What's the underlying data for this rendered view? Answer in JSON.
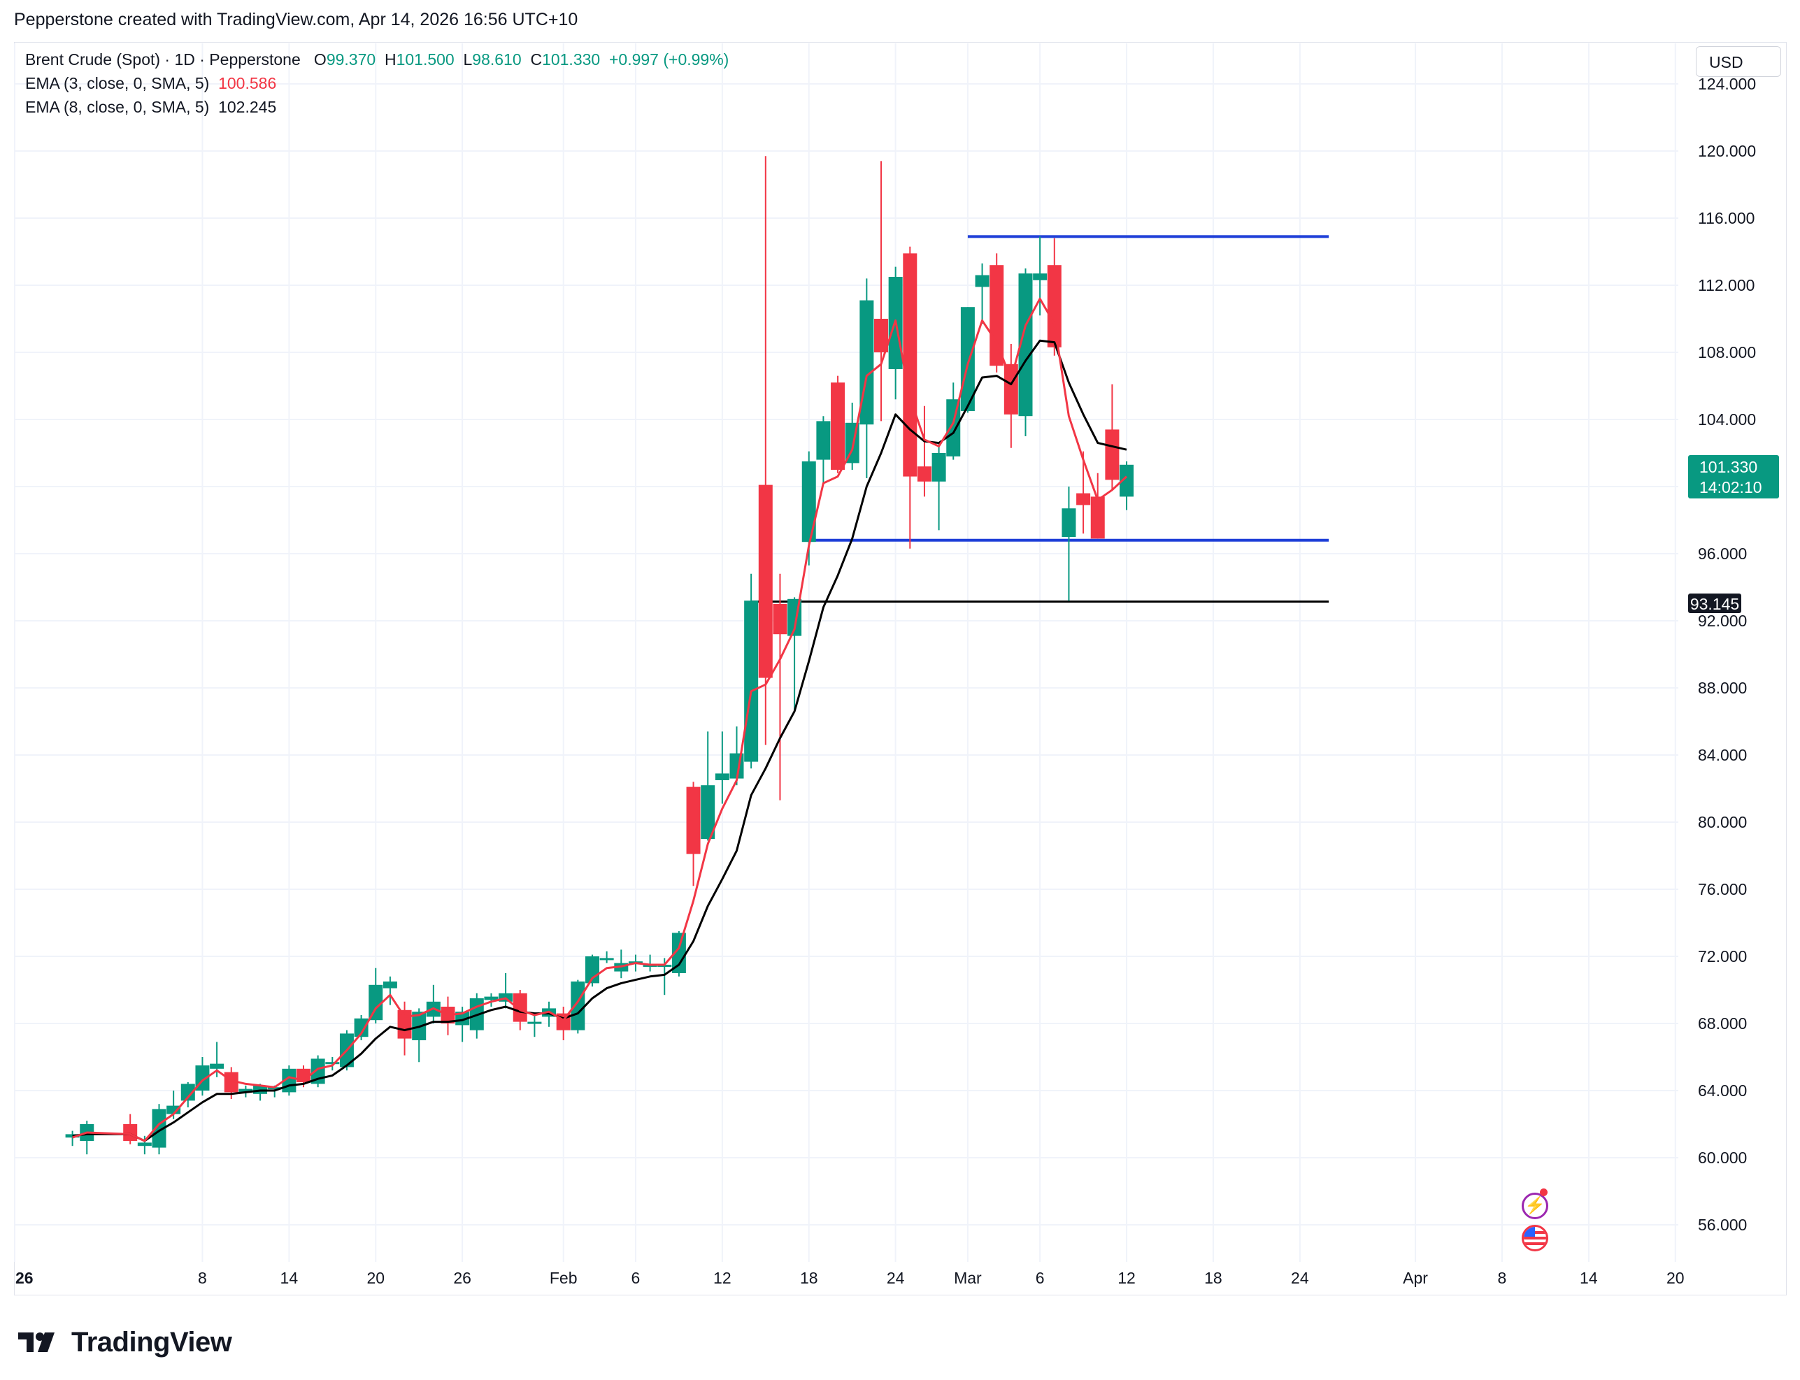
{
  "header": {
    "credit": "Pepperstone created with TradingView.com, Apr 14, 2026 16:56 UTC+10"
  },
  "legend": {
    "symbol_line": "Brent Crude (Spot) · 1D · Pepperstone",
    "o_label": "O",
    "o_value": "99.370",
    "h_label": "H",
    "h_value": "101.500",
    "l_label": "L",
    "l_value": "98.610",
    "c_label": "C",
    "c_value": "101.330",
    "change": "+0.997 (+0.99%)",
    "ema3_label": "EMA (3, close, 0, SMA, 5)",
    "ema3_value": "100.586",
    "ema8_label": "EMA (8, close, 0, SMA, 5)",
    "ema8_value": "102.245"
  },
  "currency_button": "USD",
  "price_tag": {
    "value": "101.330",
    "countdown": "14:02:10"
  },
  "level_tag": "93.145",
  "logo_text": "TradingView",
  "colors": {
    "up": "#089981",
    "down": "#f23645",
    "ema3": "#f23645",
    "ema8": "#000000",
    "levels": "#1e3fd8",
    "support": "#000000"
  },
  "icons": [
    "tradingview-logo-icon",
    "lightning-bolt-icon",
    "us-flag-icon"
  ],
  "chart_data": {
    "type": "candlestick",
    "title": "Brent Crude (Spot) · 1D · Pepperstone",
    "ylim": [
      53,
      126
    ],
    "y_ticks": [
      "56.000",
      "60.000",
      "64.000",
      "68.000",
      "72.000",
      "76.000",
      "80.000",
      "84.000",
      "88.000",
      "92.000",
      "96.000",
      "100.000",
      "104.000",
      "108.000",
      "112.000",
      "116.000",
      "120.000",
      "124.000"
    ],
    "x_ticks": [
      {
        "label": "26",
        "day": 0,
        "bold": true
      },
      {
        "label": "8",
        "day": 13
      },
      {
        "label": "14",
        "day": 19
      },
      {
        "label": "20",
        "day": 25
      },
      {
        "label": "26",
        "day": 31
      },
      {
        "label": "Feb",
        "day": 38
      },
      {
        "label": "6",
        "day": 43
      },
      {
        "label": "12",
        "day": 49
      },
      {
        "label": "18",
        "day": 55
      },
      {
        "label": "24",
        "day": 61
      },
      {
        "label": "Mar",
        "day": 66
      },
      {
        "label": "6",
        "day": 71
      },
      {
        "label": "12",
        "day": 77
      },
      {
        "label": "18",
        "day": 83
      },
      {
        "label": "24",
        "day": 89
      },
      {
        "label": "Apr",
        "day": 97
      },
      {
        "label": "8",
        "day": 103
      },
      {
        "label": "14",
        "day": 109
      },
      {
        "label": "20",
        "day": 115
      }
    ],
    "candles": [
      {
        "d": 4,
        "o": 61.2,
        "h": 61.6,
        "l": 60.7,
        "c": 61.4
      },
      {
        "d": 5,
        "o": 61.0,
        "h": 62.2,
        "l": 60.2,
        "c": 62.0
      },
      {
        "d": 8,
        "o": 62.0,
        "h": 62.6,
        "l": 60.8,
        "c": 61.0
      },
      {
        "d": 9,
        "o": 60.7,
        "h": 61.3,
        "l": 60.2,
        "c": 60.9
      },
      {
        "d": 10,
        "o": 60.6,
        "h": 63.2,
        "l": 60.2,
        "c": 62.9
      },
      {
        "d": 11,
        "o": 62.6,
        "h": 64.0,
        "l": 62.3,
        "c": 63.1
      },
      {
        "d": 12,
        "o": 63.4,
        "h": 64.5,
        "l": 63.0,
        "c": 64.4
      },
      {
        "d": 13,
        "o": 64.0,
        "h": 66.0,
        "l": 63.7,
        "c": 65.5
      },
      {
        "d": 14,
        "o": 65.3,
        "h": 66.9,
        "l": 64.8,
        "c": 65.6
      },
      {
        "d": 15,
        "o": 65.1,
        "h": 65.4,
        "l": 63.5,
        "c": 63.9
      },
      {
        "d": 16,
        "o": 63.9,
        "h": 64.3,
        "l": 63.6,
        "c": 64.1
      },
      {
        "d": 17,
        "o": 63.8,
        "h": 64.4,
        "l": 63.4,
        "c": 64.3
      },
      {
        "d": 18,
        "o": 64.1,
        "h": 64.3,
        "l": 63.6,
        "c": 64.2
      },
      {
        "d": 19,
        "o": 63.9,
        "h": 65.5,
        "l": 63.7,
        "c": 65.3
      },
      {
        "d": 20,
        "o": 65.3,
        "h": 65.5,
        "l": 64.2,
        "c": 64.5
      },
      {
        "d": 21,
        "o": 64.4,
        "h": 66.1,
        "l": 64.2,
        "c": 65.9
      },
      {
        "d": 22,
        "o": 65.6,
        "h": 66.0,
        "l": 65.2,
        "c": 65.7
      },
      {
        "d": 23,
        "o": 65.4,
        "h": 67.6,
        "l": 65.2,
        "c": 67.4
      },
      {
        "d": 24,
        "o": 67.2,
        "h": 68.5,
        "l": 67.0,
        "c": 68.3
      },
      {
        "d": 25,
        "o": 68.2,
        "h": 71.3,
        "l": 68.0,
        "c": 70.3
      },
      {
        "d": 26,
        "o": 70.1,
        "h": 70.8,
        "l": 69.1,
        "c": 70.5
      },
      {
        "d": 27,
        "o": 68.8,
        "h": 69.3,
        "l": 66.1,
        "c": 67.1
      },
      {
        "d": 28,
        "o": 67.0,
        "h": 68.9,
        "l": 65.7,
        "c": 68.7
      },
      {
        "d": 29,
        "o": 68.4,
        "h": 70.3,
        "l": 68.0,
        "c": 69.3
      },
      {
        "d": 30,
        "o": 69.0,
        "h": 69.6,
        "l": 67.3,
        "c": 68.0
      },
      {
        "d": 31,
        "o": 67.9,
        "h": 69.0,
        "l": 66.9,
        "c": 68.7
      },
      {
        "d": 32,
        "o": 67.6,
        "h": 69.8,
        "l": 67.1,
        "c": 69.5
      },
      {
        "d": 33,
        "o": 69.4,
        "h": 69.8,
        "l": 69.0,
        "c": 69.6
      },
      {
        "d": 34,
        "o": 69.3,
        "h": 71.0,
        "l": 68.9,
        "c": 69.8
      },
      {
        "d": 35,
        "o": 69.8,
        "h": 70.0,
        "l": 67.6,
        "c": 68.1
      },
      {
        "d": 36,
        "o": 68.0,
        "h": 68.5,
        "l": 67.2,
        "c": 68.1
      },
      {
        "d": 37,
        "o": 68.4,
        "h": 69.3,
        "l": 67.8,
        "c": 68.9
      },
      {
        "d": 38,
        "o": 68.6,
        "h": 69.0,
        "l": 67.0,
        "c": 67.6
      },
      {
        "d": 39,
        "o": 67.6,
        "h": 70.6,
        "l": 67.4,
        "c": 70.5
      },
      {
        "d": 40,
        "o": 70.4,
        "h": 72.1,
        "l": 70.2,
        "c": 72.0
      },
      {
        "d": 41,
        "o": 71.9,
        "h": 72.3,
        "l": 71.6,
        "c": 71.9
      },
      {
        "d": 42,
        "o": 71.1,
        "h": 72.4,
        "l": 70.7,
        "c": 71.6
      },
      {
        "d": 43,
        "o": 71.6,
        "h": 72.1,
        "l": 71.1,
        "c": 71.7
      },
      {
        "d": 44,
        "o": 71.5,
        "h": 72.1,
        "l": 71.1,
        "c": 71.5
      },
      {
        "d": 45,
        "o": 71.4,
        "h": 71.9,
        "l": 69.7,
        "c": 71.5
      },
      {
        "d": 46,
        "o": 71.0,
        "h": 73.5,
        "l": 70.8,
        "c": 73.4
      },
      {
        "d": 47,
        "o": 82.1,
        "h": 82.4,
        "l": 76.2,
        "c": 78.1
      },
      {
        "d": 48,
        "o": 79.0,
        "h": 85.4,
        "l": 78.9,
        "c": 82.2
      },
      {
        "d": 49,
        "o": 82.5,
        "h": 85.4,
        "l": 81.1,
        "c": 82.9
      },
      {
        "d": 50,
        "o": 82.6,
        "h": 85.7,
        "l": 82.2,
        "c": 84.1
      },
      {
        "d": 51,
        "o": 83.6,
        "h": 94.8,
        "l": 83.2,
        "c": 93.2
      },
      {
        "d": 52,
        "o": 100.1,
        "h": 119.7,
        "l": 84.6,
        "c": 88.6
      },
      {
        "d": 53,
        "o": 93.0,
        "h": 94.8,
        "l": 81.3,
        "c": 91.2
      },
      {
        "d": 54,
        "o": 91.1,
        "h": 93.4,
        "l": 86.7,
        "c": 93.3
      },
      {
        "d": 55,
        "o": 96.7,
        "h": 102.1,
        "l": 95.3,
        "c": 101.5
      },
      {
        "d": 56,
        "o": 101.6,
        "h": 104.2,
        "l": 100.1,
        "c": 103.9
      },
      {
        "d": 57,
        "o": 106.2,
        "h": 106.6,
        "l": 100.8,
        "c": 101.0
      },
      {
        "d": 58,
        "o": 101.4,
        "h": 105.0,
        "l": 101.0,
        "c": 103.8
      },
      {
        "d": 59,
        "o": 103.7,
        "h": 112.4,
        "l": 100.5,
        "c": 111.1
      },
      {
        "d": 60,
        "o": 110.0,
        "h": 119.4,
        "l": 103.9,
        "c": 108.0
      },
      {
        "d": 61,
        "o": 107.0,
        "h": 113.1,
        "l": 105.2,
        "c": 112.5
      },
      {
        "d": 62,
        "o": 113.9,
        "h": 114.3,
        "l": 96.3,
        "c": 100.6
      },
      {
        "d": 63,
        "o": 101.2,
        "h": 104.8,
        "l": 99.4,
        "c": 100.3
      },
      {
        "d": 64,
        "o": 100.3,
        "h": 102.6,
        "l": 97.4,
        "c": 102.0
      },
      {
        "d": 65,
        "o": 101.8,
        "h": 106.2,
        "l": 101.6,
        "c": 105.2
      },
      {
        "d": 66,
        "o": 104.5,
        "h": 110.7,
        "l": 104.4,
        "c": 110.7
      },
      {
        "d": 67,
        "o": 111.9,
        "h": 113.3,
        "l": 109.7,
        "c": 112.6
      },
      {
        "d": 68,
        "o": 113.2,
        "h": 113.9,
        "l": 106.8,
        "c": 107.2
      },
      {
        "d": 69,
        "o": 107.3,
        "h": 108.5,
        "l": 102.3,
        "c": 104.3
      },
      {
        "d": 70,
        "o": 104.2,
        "h": 113.0,
        "l": 103.0,
        "c": 112.7
      },
      {
        "d": 71,
        "o": 112.3,
        "h": 114.9,
        "l": 110.2,
        "c": 112.7
      },
      {
        "d": 72,
        "o": 113.2,
        "h": 114.8,
        "l": 107.8,
        "c": 108.3
      },
      {
        "d": 73,
        "o": 97.0,
        "h": 100.0,
        "l": 93.2,
        "c": 98.7
      },
      {
        "d": 74,
        "o": 99.6,
        "h": 102.1,
        "l": 97.2,
        "c": 98.9
      },
      {
        "d": 75,
        "o": 99.4,
        "h": 100.8,
        "l": 96.9,
        "c": 96.9
      },
      {
        "d": 76,
        "o": 103.4,
        "h": 106.1,
        "l": 99.8,
        "c": 100.4
      },
      {
        "d": 77,
        "o": 99.4,
        "h": 101.5,
        "l": 98.6,
        "c": 101.3
      }
    ],
    "ema3": [
      {
        "d": 4,
        "v": 61.2
      },
      {
        "d": 5,
        "v": 61.5
      },
      {
        "d": 8,
        "v": 61.4
      },
      {
        "d": 9,
        "v": 61.0
      },
      {
        "d": 10,
        "v": 62.0
      },
      {
        "d": 11,
        "v": 62.6
      },
      {
        "d": 12,
        "v": 63.6
      },
      {
        "d": 13,
        "v": 64.6
      },
      {
        "d": 14,
        "v": 65.2
      },
      {
        "d": 15,
        "v": 64.6
      },
      {
        "d": 16,
        "v": 64.4
      },
      {
        "d": 17,
        "v": 64.3
      },
      {
        "d": 18,
        "v": 64.2
      },
      {
        "d": 19,
        "v": 64.8
      },
      {
        "d": 20,
        "v": 64.6
      },
      {
        "d": 21,
        "v": 65.3
      },
      {
        "d": 22,
        "v": 65.5
      },
      {
        "d": 23,
        "v": 66.4
      },
      {
        "d": 24,
        "v": 67.4
      },
      {
        "d": 25,
        "v": 68.9
      },
      {
        "d": 26,
        "v": 69.7
      },
      {
        "d": 27,
        "v": 68.4
      },
      {
        "d": 28,
        "v": 68.5
      },
      {
        "d": 29,
        "v": 68.9
      },
      {
        "d": 30,
        "v": 68.5
      },
      {
        "d": 31,
        "v": 68.6
      },
      {
        "d": 32,
        "v": 69.0
      },
      {
        "d": 33,
        "v": 69.3
      },
      {
        "d": 34,
        "v": 69.5
      },
      {
        "d": 35,
        "v": 68.8
      },
      {
        "d": 36,
        "v": 68.5
      },
      {
        "d": 37,
        "v": 68.7
      },
      {
        "d": 38,
        "v": 68.2
      },
      {
        "d": 39,
        "v": 69.3
      },
      {
        "d": 40,
        "v": 70.7
      },
      {
        "d": 41,
        "v": 71.3
      },
      {
        "d": 42,
        "v": 71.4
      },
      {
        "d": 43,
        "v": 71.6
      },
      {
        "d": 44,
        "v": 71.5
      },
      {
        "d": 45,
        "v": 71.5
      },
      {
        "d": 46,
        "v": 72.5
      },
      {
        "d": 47,
        "v": 75.3
      },
      {
        "d": 48,
        "v": 78.7
      },
      {
        "d": 49,
        "v": 80.8
      },
      {
        "d": 50,
        "v": 82.5
      },
      {
        "d": 51,
        "v": 87.8
      },
      {
        "d": 52,
        "v": 88.2
      },
      {
        "d": 53,
        "v": 89.7
      },
      {
        "d": 54,
        "v": 91.5
      },
      {
        "d": 55,
        "v": 96.5
      },
      {
        "d": 56,
        "v": 100.2
      },
      {
        "d": 57,
        "v": 100.6
      },
      {
        "d": 58,
        "v": 102.2
      },
      {
        "d": 59,
        "v": 106.6
      },
      {
        "d": 60,
        "v": 107.3
      },
      {
        "d": 61,
        "v": 109.9
      },
      {
        "d": 62,
        "v": 105.3
      },
      {
        "d": 63,
        "v": 102.8
      },
      {
        "d": 64,
        "v": 102.4
      },
      {
        "d": 65,
        "v": 103.8
      },
      {
        "d": 66,
        "v": 107.3
      },
      {
        "d": 67,
        "v": 109.9
      },
      {
        "d": 68,
        "v": 108.6
      },
      {
        "d": 69,
        "v": 106.4
      },
      {
        "d": 70,
        "v": 109.6
      },
      {
        "d": 71,
        "v": 111.2
      },
      {
        "d": 72,
        "v": 109.7
      },
      {
        "d": 73,
        "v": 104.2
      },
      {
        "d": 74,
        "v": 101.6
      },
      {
        "d": 75,
        "v": 99.2
      },
      {
        "d": 76,
        "v": 99.8
      },
      {
        "d": 77,
        "v": 100.6
      }
    ],
    "ema8": [
      {
        "d": 4,
        "v": 61.3
      },
      {
        "d": 5,
        "v": 61.4
      },
      {
        "d": 8,
        "v": 61.4
      },
      {
        "d": 9,
        "v": 61.0
      },
      {
        "d": 10,
        "v": 61.6
      },
      {
        "d": 11,
        "v": 62.1
      },
      {
        "d": 12,
        "v": 62.7
      },
      {
        "d": 13,
        "v": 63.3
      },
      {
        "d": 14,
        "v": 63.8
      },
      {
        "d": 15,
        "v": 63.8
      },
      {
        "d": 16,
        "v": 63.9
      },
      {
        "d": 17,
        "v": 64.0
      },
      {
        "d": 18,
        "v": 64.0
      },
      {
        "d": 19,
        "v": 64.3
      },
      {
        "d": 20,
        "v": 64.4
      },
      {
        "d": 21,
        "v": 64.7
      },
      {
        "d": 22,
        "v": 64.9
      },
      {
        "d": 23,
        "v": 65.5
      },
      {
        "d": 24,
        "v": 66.2
      },
      {
        "d": 25,
        "v": 67.1
      },
      {
        "d": 26,
        "v": 67.8
      },
      {
        "d": 27,
        "v": 67.6
      },
      {
        "d": 28,
        "v": 67.8
      },
      {
        "d": 29,
        "v": 68.1
      },
      {
        "d": 30,
        "v": 68.1
      },
      {
        "d": 31,
        "v": 68.2
      },
      {
        "d": 32,
        "v": 68.5
      },
      {
        "d": 33,
        "v": 68.8
      },
      {
        "d": 34,
        "v": 69.0
      },
      {
        "d": 35,
        "v": 68.7
      },
      {
        "d": 36,
        "v": 68.6
      },
      {
        "d": 37,
        "v": 68.6
      },
      {
        "d": 38,
        "v": 68.3
      },
      {
        "d": 39,
        "v": 68.6
      },
      {
        "d": 40,
        "v": 69.5
      },
      {
        "d": 41,
        "v": 70.1
      },
      {
        "d": 42,
        "v": 70.4
      },
      {
        "d": 43,
        "v": 70.6
      },
      {
        "d": 44,
        "v": 70.8
      },
      {
        "d": 45,
        "v": 70.9
      },
      {
        "d": 46,
        "v": 71.5
      },
      {
        "d": 47,
        "v": 72.9
      },
      {
        "d": 48,
        "v": 75.0
      },
      {
        "d": 49,
        "v": 76.6
      },
      {
        "d": 50,
        "v": 78.3
      },
      {
        "d": 51,
        "v": 81.6
      },
      {
        "d": 52,
        "v": 83.2
      },
      {
        "d": 53,
        "v": 85.0
      },
      {
        "d": 54,
        "v": 86.6
      },
      {
        "d": 55,
        "v": 89.6
      },
      {
        "d": 56,
        "v": 92.8
      },
      {
        "d": 57,
        "v": 94.7
      },
      {
        "d": 58,
        "v": 96.9
      },
      {
        "d": 59,
        "v": 100.0
      },
      {
        "d": 60,
        "v": 102.0
      },
      {
        "d": 61,
        "v": 104.3
      },
      {
        "d": 62,
        "v": 103.4
      },
      {
        "d": 63,
        "v": 102.7
      },
      {
        "d": 64,
        "v": 102.6
      },
      {
        "d": 65,
        "v": 103.2
      },
      {
        "d": 66,
        "v": 104.8
      },
      {
        "d": 67,
        "v": 106.5
      },
      {
        "d": 68,
        "v": 106.6
      },
      {
        "d": 69,
        "v": 106.1
      },
      {
        "d": 70,
        "v": 107.5
      },
      {
        "d": 71,
        "v": 108.7
      },
      {
        "d": 72,
        "v": 108.6
      },
      {
        "d": 73,
        "v": 106.2
      },
      {
        "d": 74,
        "v": 104.3
      },
      {
        "d": 75,
        "v": 102.6
      },
      {
        "d": 76,
        "v": 102.4
      },
      {
        "d": 77,
        "v": 102.2
      }
    ],
    "resistance": {
      "value": 114.9,
      "from_day": 66,
      "to_day": 91
    },
    "support": {
      "value": 96.8,
      "from_day": 55,
      "to_day": 91
    },
    "level": {
      "value": 93.145,
      "from_day": 51,
      "to_day": 91
    }
  }
}
